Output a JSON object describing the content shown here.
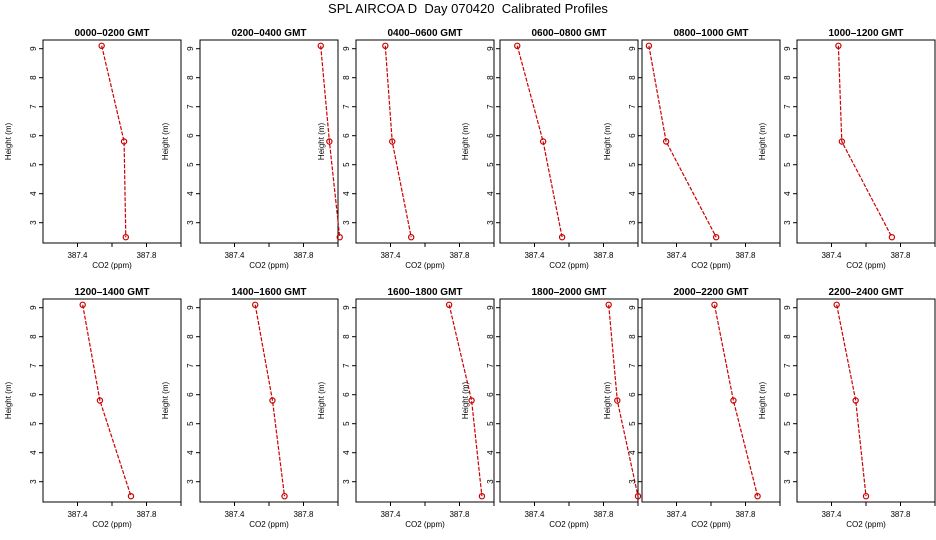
{
  "figure_title": "SPL AIRCOA D  Day 070420  Calibrated Profiles",
  "chart_data": [
    {
      "type": "line",
      "title": "0000–0200 GMT",
      "xlabel": "CO2 (ppm)",
      "ylabel": "Height (m)",
      "xlim": [
        387.2,
        388.0
      ],
      "ylim": [
        2.3,
        9.3
      ],
      "xticks": [
        387.4,
        387.8
      ],
      "xminor": [
        387.6,
        388.0
      ],
      "yticks": [
        3,
        4,
        5,
        6,
        7,
        8,
        9
      ],
      "grid": false,
      "series": [
        {
          "x": [
            387.54,
            387.67,
            387.68
          ],
          "y": [
            9.1,
            5.8,
            2.5
          ],
          "color": "#cc0000"
        }
      ]
    },
    {
      "type": "line",
      "title": "0200–0400 GMT",
      "xlabel": "CO2 (ppm)",
      "ylabel": "Height (m)",
      "xlim": [
        387.2,
        388.0
      ],
      "ylim": [
        2.3,
        9.3
      ],
      "xticks": [
        387.4,
        387.8
      ],
      "xminor": [
        387.6,
        388.0
      ],
      "yticks": [
        3,
        4,
        5,
        6,
        7,
        8,
        9
      ],
      "grid": false,
      "series": [
        {
          "x": [
            387.9,
            387.95,
            388.01
          ],
          "y": [
            9.1,
            5.8,
            2.5
          ],
          "color": "#cc0000"
        }
      ]
    },
    {
      "type": "line",
      "title": "0400–0600 GMT",
      "xlabel": "CO2 (ppm)",
      "ylabel": "Height (m)",
      "xlim": [
        387.2,
        388.0
      ],
      "ylim": [
        2.3,
        9.3
      ],
      "xticks": [
        387.4,
        387.8
      ],
      "xminor": [
        387.6,
        388.0
      ],
      "yticks": [
        3,
        4,
        5,
        6,
        7,
        8,
        9
      ],
      "grid": false,
      "series": [
        {
          "x": [
            387.37,
            387.41,
            387.52
          ],
          "y": [
            9.1,
            5.8,
            2.5
          ],
          "color": "#cc0000"
        }
      ]
    },
    {
      "type": "line",
      "title": "0600–0800 GMT",
      "xlabel": "CO2 (ppm)",
      "ylabel": "Height (m)",
      "xlim": [
        387.2,
        388.0
      ],
      "ylim": [
        2.3,
        9.3
      ],
      "xticks": [
        387.4,
        387.8
      ],
      "xminor": [
        387.6,
        388.0
      ],
      "yticks": [
        3,
        4,
        5,
        6,
        7,
        8,
        9
      ],
      "grid": false,
      "series": [
        {
          "x": [
            387.3,
            387.45,
            387.56
          ],
          "y": [
            9.1,
            5.8,
            2.5
          ],
          "color": "#cc0000"
        }
      ]
    },
    {
      "type": "line",
      "title": "0800–1000 GMT",
      "xlabel": "CO2 (ppm)",
      "ylabel": "Height (m)",
      "xlim": [
        387.2,
        388.0
      ],
      "ylim": [
        2.3,
        9.3
      ],
      "xticks": [
        387.4,
        387.8
      ],
      "xminor": [
        387.6,
        388.0
      ],
      "yticks": [
        3,
        4,
        5,
        6,
        7,
        8,
        9
      ],
      "grid": false,
      "series": [
        {
          "x": [
            387.24,
            387.34,
            387.63
          ],
          "y": [
            9.1,
            5.8,
            2.5
          ],
          "color": "#cc0000"
        }
      ]
    },
    {
      "type": "line",
      "title": "1000–1200 GMT",
      "xlabel": "CO2 (ppm)",
      "ylabel": "Height (m)",
      "xlim": [
        387.2,
        388.0
      ],
      "ylim": [
        2.3,
        9.3
      ],
      "xticks": [
        387.4,
        387.8
      ],
      "xminor": [
        387.6,
        388.0
      ],
      "yticks": [
        3,
        4,
        5,
        6,
        7,
        8,
        9
      ],
      "grid": false,
      "series": [
        {
          "x": [
            387.44,
            387.46,
            387.75
          ],
          "y": [
            9.1,
            5.8,
            2.5
          ],
          "color": "#cc0000"
        }
      ]
    },
    {
      "type": "line",
      "title": "1200–1400 GMT",
      "xlabel": "CO2 (ppm)",
      "ylabel": "Height (m)",
      "xlim": [
        387.2,
        388.0
      ],
      "ylim": [
        2.3,
        9.3
      ],
      "xticks": [
        387.4,
        387.8
      ],
      "xminor": [
        387.6,
        388.0
      ],
      "yticks": [
        3,
        4,
        5,
        6,
        7,
        8,
        9
      ],
      "grid": false,
      "series": [
        {
          "x": [
            387.43,
            387.53,
            387.71
          ],
          "y": [
            9.1,
            5.8,
            2.5
          ],
          "color": "#cc0000"
        }
      ]
    },
    {
      "type": "line",
      "title": "1400–1600 GMT",
      "xlabel": "CO2 (ppm)",
      "ylabel": "Height (m)",
      "xlim": [
        387.2,
        388.0
      ],
      "ylim": [
        2.3,
        9.3
      ],
      "xticks": [
        387.4,
        387.8
      ],
      "xminor": [
        387.6,
        388.0
      ],
      "yticks": [
        3,
        4,
        5,
        6,
        7,
        8,
        9
      ],
      "grid": false,
      "series": [
        {
          "x": [
            387.52,
            387.62,
            387.69
          ],
          "y": [
            9.1,
            5.8,
            2.5
          ],
          "color": "#cc0000"
        }
      ]
    },
    {
      "type": "line",
      "title": "1600–1800 GMT",
      "xlabel": "CO2 (ppm)",
      "ylabel": "Height (m)",
      "xlim": [
        387.2,
        388.0
      ],
      "ylim": [
        2.3,
        9.3
      ],
      "xticks": [
        387.4,
        387.8
      ],
      "xminor": [
        387.6,
        388.0
      ],
      "yticks": [
        3,
        4,
        5,
        6,
        7,
        8,
        9
      ],
      "grid": false,
      "series": [
        {
          "x": [
            387.74,
            387.87,
            387.93
          ],
          "y": [
            9.1,
            5.8,
            2.5
          ],
          "color": "#cc0000"
        }
      ]
    },
    {
      "type": "line",
      "title": "1800–2000 GMT",
      "xlabel": "CO2 (ppm)",
      "ylabel": "Height (m)",
      "xlim": [
        387.2,
        388.0
      ],
      "ylim": [
        2.3,
        9.3
      ],
      "xticks": [
        387.4,
        387.8
      ],
      "xminor": [
        387.6,
        388.0
      ],
      "yticks": [
        3,
        4,
        5,
        6,
        7,
        8,
        9
      ],
      "grid": false,
      "series": [
        {
          "x": [
            387.83,
            387.88,
            388.0
          ],
          "y": [
            9.1,
            5.8,
            2.5
          ],
          "color": "#cc0000"
        }
      ]
    },
    {
      "type": "line",
      "title": "2000–2200 GMT",
      "xlabel": "CO2 (ppm)",
      "ylabel": "Height (m)",
      "xlim": [
        387.2,
        388.0
      ],
      "ylim": [
        2.3,
        9.3
      ],
      "xticks": [
        387.4,
        387.8
      ],
      "xminor": [
        387.6,
        388.0
      ],
      "yticks": [
        3,
        4,
        5,
        6,
        7,
        8,
        9
      ],
      "grid": false,
      "series": [
        {
          "x": [
            387.62,
            387.73,
            387.87
          ],
          "y": [
            9.1,
            5.8,
            2.5
          ],
          "color": "#cc0000"
        }
      ]
    },
    {
      "type": "line",
      "title": "2200–2400 GMT",
      "xlabel": "CO2 (ppm)",
      "ylabel": "Height (m)",
      "xlim": [
        387.2,
        388.0
      ],
      "ylim": [
        2.3,
        9.3
      ],
      "xticks": [
        387.4,
        387.8
      ],
      "xminor": [
        387.6,
        388.0
      ],
      "yticks": [
        3,
        4,
        5,
        6,
        7,
        8,
        9
      ],
      "grid": false,
      "series": [
        {
          "x": [
            387.43,
            387.54,
            387.6
          ],
          "y": [
            9.1,
            5.8,
            2.5
          ],
          "color": "#cc0000"
        }
      ]
    }
  ]
}
